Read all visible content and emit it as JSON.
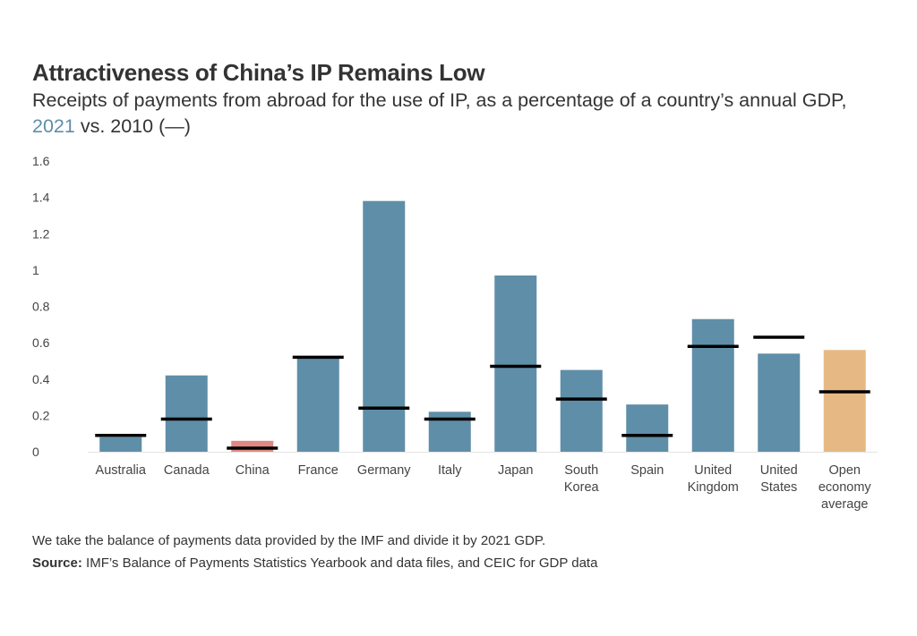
{
  "title": "Attractiveness of China’s IP Remains Low",
  "subtitle": {
    "text": "Receipts of payments from abroad for the use of IP, as a percentage of a country’s annual GDP,",
    "highlight": "2021",
    "rest": " vs. 2010 (—)"
  },
  "note": "We take the balance of payments data provided by the IMF and divide it by 2021 GDP.",
  "source": {
    "label": "Source:",
    "text": " IMF’s Balance of Payments Statistics Yearbook and data files, and CEIC for GDP data"
  },
  "chart_data": {
    "type": "bar",
    "categories": [
      [
        "Australia"
      ],
      [
        "Canada"
      ],
      [
        "China"
      ],
      [
        "France"
      ],
      [
        "Germany"
      ],
      [
        "Italy"
      ],
      [
        "Japan"
      ],
      [
        "South",
        "Korea"
      ],
      [
        "Spain"
      ],
      [
        "United",
        "Kingdom"
      ],
      [
        "United",
        "States"
      ],
      [
        "Open",
        "economy",
        "average"
      ]
    ],
    "series": [
      {
        "name": "2021",
        "values": [
          0.08,
          0.42,
          0.06,
          0.52,
          1.38,
          0.22,
          0.97,
          0.45,
          0.26,
          0.73,
          0.54,
          0.56
        ]
      },
      {
        "name": "2010",
        "values": [
          0.09,
          0.18,
          0.02,
          0.52,
          0.24,
          0.18,
          0.47,
          0.29,
          0.09,
          0.58,
          0.63,
          0.33
        ]
      }
    ],
    "bar_colors": [
      "#5f8ea8",
      "#5f8ea8",
      "#de8a82",
      "#5f8ea8",
      "#5f8ea8",
      "#5f8ea8",
      "#5f8ea8",
      "#5f8ea8",
      "#5f8ea8",
      "#5f8ea8",
      "#5f8ea8",
      "#e6b984"
    ],
    "marker_color": "#000000",
    "yticks": [
      "0",
      "0.2",
      "0.4",
      "0.6",
      "0.8",
      "1",
      "1.2",
      "1.4",
      "1.6"
    ],
    "ylim": [
      0,
      1.6
    ],
    "grid": false,
    "xlabel": "",
    "ylabel": ""
  }
}
